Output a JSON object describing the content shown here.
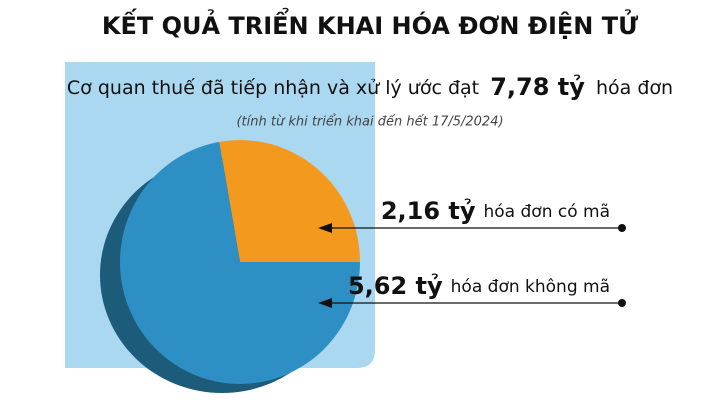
{
  "chart_data": {
    "type": "pie",
    "title": "KẾT QUẢ TRIỂN KHAI HÓA ĐƠN ĐIỆN TỬ",
    "subtitle": [
      "Cơ quan thuế đã tiếp nhận và xử lý ước đạt",
      "7,78 tỷ",
      "hóa đơn"
    ],
    "note": "(tính từ khi triển khai đến hết 17/5/2024)",
    "categories": [
      "hóa đơn có mã",
      "hóa đơn không mã"
    ],
    "values": [
      2.16,
      5.62
    ],
    "value_labels": [
      "2,16 tỷ",
      "5,62 tỷ"
    ],
    "colors": [
      "#f39a1e",
      "#2e8fc4"
    ]
  }
}
